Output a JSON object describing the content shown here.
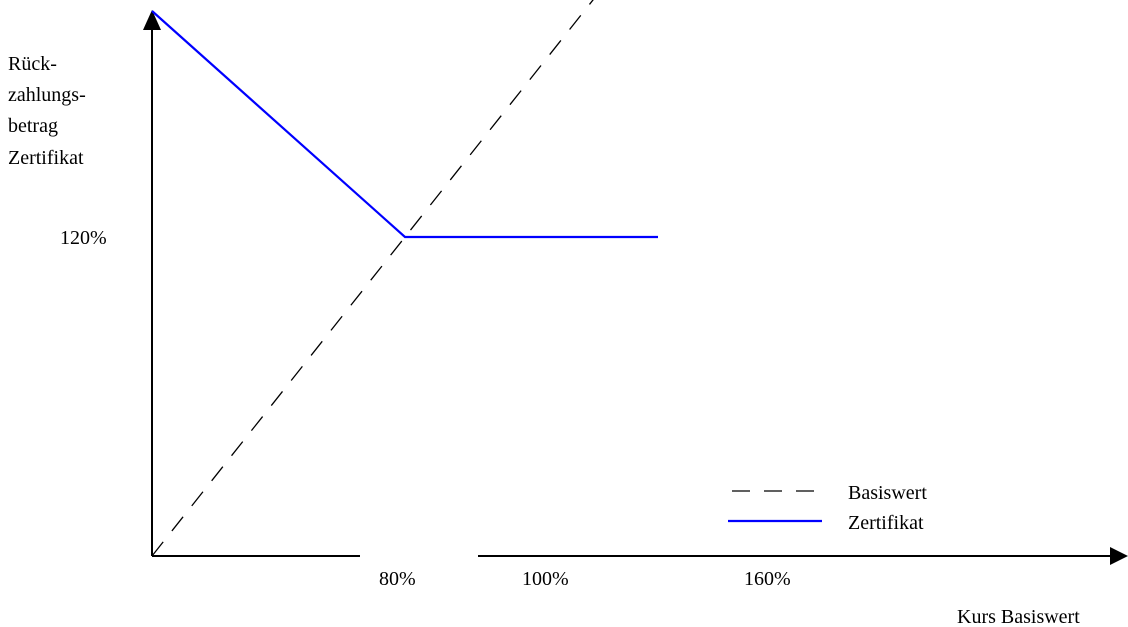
{
  "chart_data": {
    "type": "line",
    "ylabel_lines": [
      "Rück-",
      "zahlungs-",
      "betrag",
      "Zertifikat"
    ],
    "xlabel": "Kurs Basiswert",
    "x_ticks": [
      "80%",
      "100%",
      "160%"
    ],
    "y_ticks": [
      "120%"
    ],
    "series": [
      {
        "name": "Basiswert",
        "style": "dashed",
        "color": "#000000",
        "points": [
          [
            0,
            0
          ],
          [
            160,
            240
          ]
        ]
      },
      {
        "name": "Zertifikat",
        "style": "solid",
        "color": "#0000ff",
        "points": [
          [
            0,
            205
          ],
          [
            80,
            120
          ],
          [
            160,
            120
          ]
        ]
      }
    ],
    "legend_position": "bottom-right"
  }
}
